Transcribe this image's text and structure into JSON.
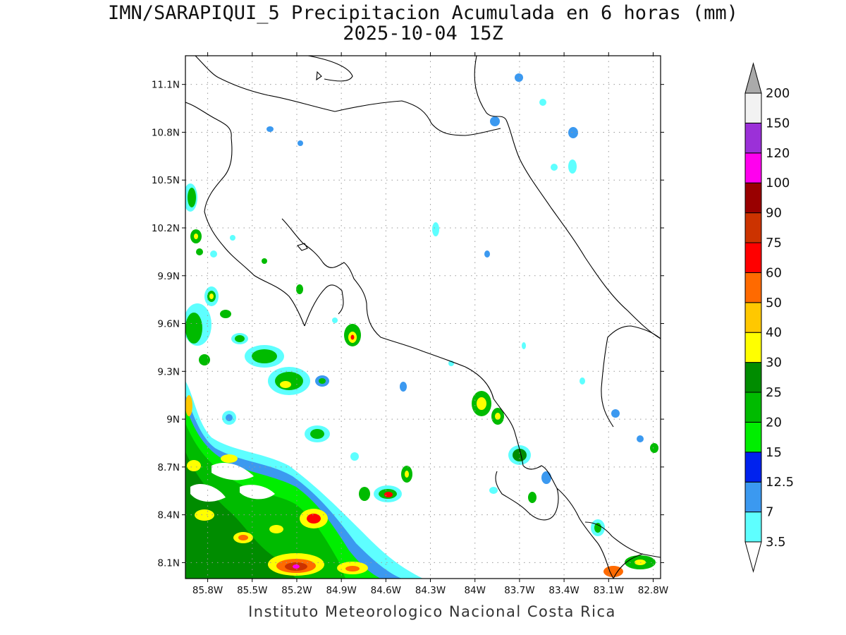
{
  "title": {
    "line1": "IMN/SARAPIQUI_5 Precipitacion Acumulada en 6 horas (mm)",
    "line2": "2025-10-04 15Z"
  },
  "footer": "Instituto Meteorologico Nacional Costa Rica",
  "map": {
    "lon_range": [
      -85.95,
      -82.75
    ],
    "lat_range": [
      8.0,
      11.28
    ],
    "lat_ticks": [
      {
        "value": 11.1,
        "label": "11.1N"
      },
      {
        "value": 10.8,
        "label": "10.8N"
      },
      {
        "value": 10.5,
        "label": "10.5N"
      },
      {
        "value": 10.2,
        "label": "10.2N"
      },
      {
        "value": 9.9,
        "label": "9.9N"
      },
      {
        "value": 9.6,
        "label": "9.6N"
      },
      {
        "value": 9.3,
        "label": "9.3N"
      },
      {
        "value": 9.0,
        "label": "9N"
      },
      {
        "value": 8.7,
        "label": "8.7N"
      },
      {
        "value": 8.4,
        "label": "8.4N"
      },
      {
        "value": 8.1,
        "label": "8.1N"
      }
    ],
    "lon_ticks": [
      {
        "value": -85.8,
        "label": "85.8W"
      },
      {
        "value": -85.5,
        "label": "85.5W"
      },
      {
        "value": -85.2,
        "label": "85.2W"
      },
      {
        "value": -84.9,
        "label": "84.9W"
      },
      {
        "value": -84.6,
        "label": "84.6W"
      },
      {
        "value": -84.3,
        "label": "84.3W"
      },
      {
        "value": -84.0,
        "label": "84W"
      },
      {
        "value": -83.7,
        "label": "83.7W"
      },
      {
        "value": -83.4,
        "label": "83.4W"
      },
      {
        "value": -83.1,
        "label": "83.1W"
      },
      {
        "value": -82.8,
        "label": "82.8W"
      }
    ],
    "grid": true
  },
  "colorbar": {
    "units": "mm",
    "levels": [
      {
        "label": "3.5",
        "color": "#5effff"
      },
      {
        "label": "7",
        "color": "#3b99f0"
      },
      {
        "label": "12.5",
        "color": "#0022ee"
      },
      {
        "label": "15",
        "color": "#00ee00"
      },
      {
        "label": "20",
        "color": "#00bb00"
      },
      {
        "label": "25",
        "color": "#008c00"
      },
      {
        "label": "30",
        "color": "#ffff00"
      },
      {
        "label": "40",
        "color": "#ffc800"
      },
      {
        "label": "50",
        "color": "#ff6a00"
      },
      {
        "label": "60",
        "color": "#ff0000"
      },
      {
        "label": "75",
        "color": "#cc3300"
      },
      {
        "label": "90",
        "color": "#990000"
      },
      {
        "label": "100",
        "color": "#ff00ee"
      },
      {
        "label": "120",
        "color": "#9b30d8"
      },
      {
        "label": "150",
        "color": "#f2f2f2"
      },
      {
        "label": "200",
        "color": "#aaaaaa"
      }
    ]
  }
}
